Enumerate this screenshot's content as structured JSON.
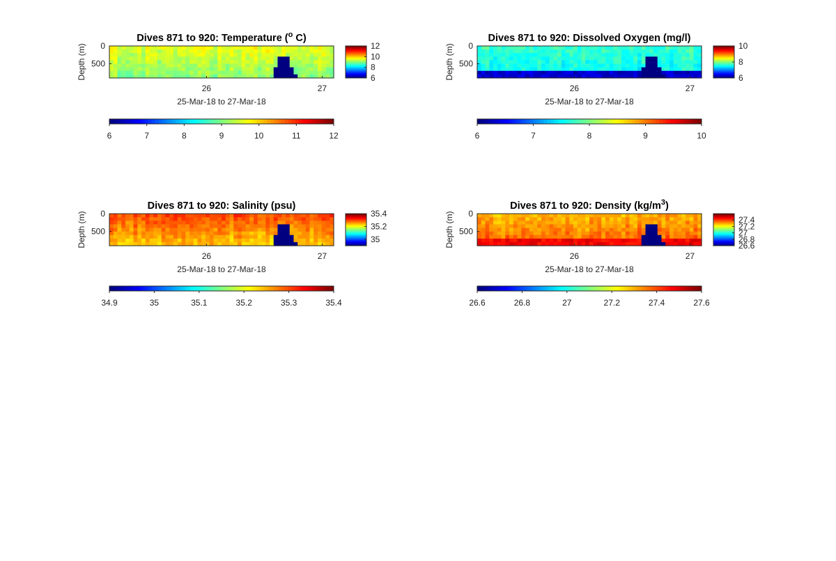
{
  "figure": {
    "background": "#ffffff"
  },
  "chart_data": [
    {
      "type": "heatmap",
      "id": "temperature",
      "title": "Dives 871 to 920: Temperature (° C)",
      "title_parts": {
        "before": "Dives 871 to 920: Temperature (",
        "sup": "o",
        "after": " C)"
      },
      "xlabel": "25-Mar-18 to 27-Mar-18",
      "ylabel": "Depth (m)",
      "xlim": [
        25.16,
        27.1
      ],
      "ylim": [
        0,
        900
      ],
      "xticks": [
        "26",
        "27"
      ],
      "xtick_values": [
        26,
        27
      ],
      "yticks": [
        "0",
        "500"
      ],
      "ytick_values": [
        0,
        500
      ],
      "colorbar_right": {
        "ticks": [
          "12",
          "10",
          "8",
          "6"
        ],
        "tick_values": [
          12,
          10,
          8,
          6
        ],
        "range": [
          6,
          12
        ]
      },
      "colorbar_bottom": {
        "ticks": [
          "6",
          "7",
          "8",
          "9",
          "10",
          "11",
          "12"
        ],
        "tick_values": [
          6,
          7,
          8,
          9,
          10,
          11,
          12
        ],
        "range": [
          6,
          12
        ]
      },
      "colormap": "jet",
      "field": {
        "surface": 9.6,
        "deep": 9.1,
        "bottom_layer": null
      },
      "gap": {
        "x_start": 26.57,
        "x_end": 26.8,
        "fill_value": 6
      }
    },
    {
      "type": "heatmap",
      "id": "oxygen",
      "title": "Dives 871 to 920: Dissolved Oxygen (mg/l)",
      "title_parts": {
        "before": "Dives 871 to 920: Dissolved Oxygen (mg/l)",
        "sup": "",
        "after": ""
      },
      "xlabel": "25-Mar-18 to 27-Mar-18",
      "ylabel": "Depth (m)",
      "xlim": [
        25.16,
        27.1
      ],
      "ylim": [
        0,
        900
      ],
      "xticks": [
        "26",
        "27"
      ],
      "xtick_values": [
        26,
        27
      ],
      "yticks": [
        "0",
        "500"
      ],
      "ytick_values": [
        0,
        500
      ],
      "colorbar_right": {
        "ticks": [
          "10",
          "8",
          "6"
        ],
        "tick_values": [
          10,
          8,
          6
        ],
        "range": [
          6,
          10
        ]
      },
      "colorbar_bottom": {
        "ticks": [
          "6",
          "7",
          "8",
          "9",
          "10"
        ],
        "tick_values": [
          6,
          7,
          8,
          9,
          10
        ],
        "range": [
          6,
          10
        ]
      },
      "colormap": "jet",
      "field": {
        "surface": 7.7,
        "deep": 7.5,
        "bottom_layer": 6.3
      },
      "gap": {
        "x_start": 26.57,
        "x_end": 26.8,
        "fill_value": 6
      }
    },
    {
      "type": "heatmap",
      "id": "salinity",
      "title": "Dives 871 to 920: Salinity (psu)",
      "title_parts": {
        "before": "Dives 871 to 920: Salinity (psu)",
        "sup": "",
        "after": ""
      },
      "xlabel": "25-Mar-18 to 27-Mar-18",
      "ylabel": "Depth (m)",
      "xlim": [
        25.16,
        27.1
      ],
      "ylim": [
        0,
        900
      ],
      "xticks": [
        "26",
        "27"
      ],
      "xtick_values": [
        26,
        27
      ],
      "yticks": [
        "0",
        "500"
      ],
      "ytick_values": [
        0,
        500
      ],
      "colorbar_right": {
        "ticks": [
          "35.4",
          "35.2",
          "35"
        ],
        "tick_values": [
          35.4,
          35.2,
          35.0
        ],
        "range": [
          34.9,
          35.4
        ]
      },
      "colorbar_bottom": {
        "ticks": [
          "34.9",
          "35",
          "35.1",
          "35.2",
          "35.3",
          "35.4"
        ],
        "tick_values": [
          34.9,
          35.0,
          35.1,
          35.2,
          35.3,
          35.4
        ],
        "range": [
          34.9,
          35.4
        ]
      },
      "colormap": "jet",
      "field": {
        "surface": 35.3,
        "deep": 35.24,
        "bottom_layer": null
      },
      "gap": {
        "x_start": 26.57,
        "x_end": 26.8,
        "fill_value": 34.9
      }
    },
    {
      "type": "heatmap",
      "id": "density",
      "title": "Dives 871 to 920: Density (kg/m³)",
      "title_parts": {
        "before": "Dives 871 to 920: Density (kg/m",
        "sup": "3",
        "after": ")"
      },
      "xlabel": "25-Mar-18 to 27-Mar-18",
      "ylabel": "Depth (m)",
      "xlim": [
        25.16,
        27.1
      ],
      "ylim": [
        0,
        900
      ],
      "xticks": [
        "26",
        "27"
      ],
      "xtick_values": [
        26,
        27
      ],
      "yticks": [
        "0",
        "500"
      ],
      "ytick_values": [
        0,
        500
      ],
      "colorbar_right": {
        "ticks": [
          "27.4",
          "27.2",
          "27",
          "26.8",
          "26.6"
        ],
        "tick_values": [
          27.4,
          27.2,
          27.0,
          26.8,
          26.6
        ],
        "range": [
          26.6,
          27.6
        ]
      },
      "colorbar_bottom": {
        "ticks": [
          "26.6",
          "26.8",
          "27",
          "27.2",
          "27.4",
          "27.6"
        ],
        "tick_values": [
          26.6,
          26.8,
          27.0,
          27.2,
          27.4,
          27.6
        ],
        "range": [
          26.6,
          27.6
        ]
      },
      "colormap": "jet",
      "field": {
        "surface": 27.3,
        "deep": 27.38,
        "bottom_layer": 27.48
      },
      "gap": {
        "x_start": 26.57,
        "x_end": 26.8,
        "fill_value": 26.6
      }
    }
  ]
}
